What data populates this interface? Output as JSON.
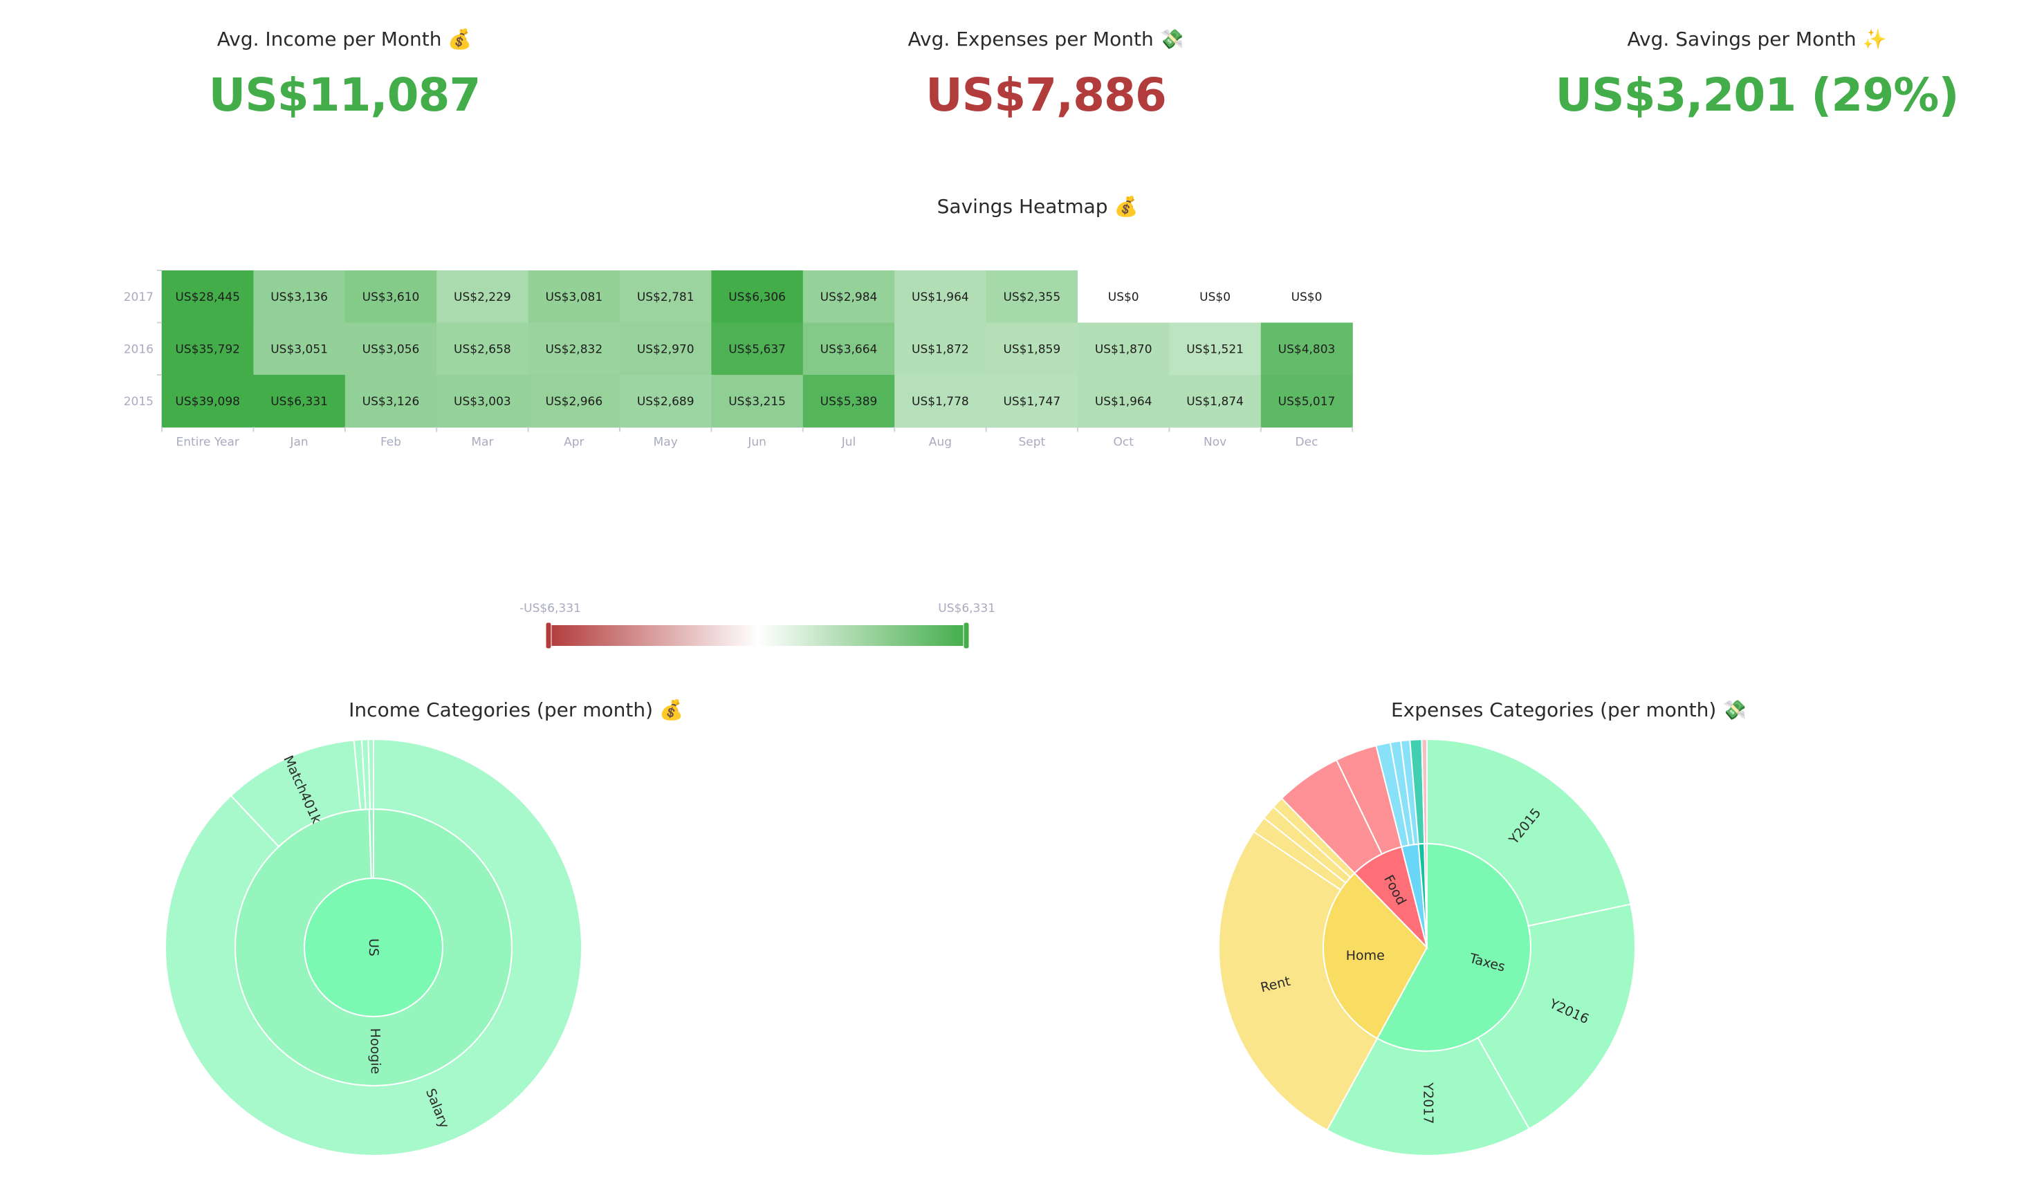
{
  "stats": {
    "income": {
      "title": "Avg. Income per Month 💰",
      "value": "US$11,087",
      "color": "#43ad4a"
    },
    "expenses": {
      "title": "Avg. Expenses per Month 💸",
      "value": "US$7,886",
      "color": "#b23b3b"
    },
    "savings": {
      "title": "Avg. Savings per Month ✨",
      "value": "US$3,201 (29%)",
      "color": "#43ad4a"
    }
  },
  "heatmap": {
    "title": "Savings Heatmap 💰",
    "columns": [
      "Entire Year",
      "Jan",
      "Feb",
      "Mar",
      "Apr",
      "May",
      "Jun",
      "Jul",
      "Aug",
      "Sept",
      "Oct",
      "Nov",
      "Dec"
    ],
    "rows": [
      {
        "year": "2017",
        "values": [
          28445,
          3136,
          3610,
          2229,
          3081,
          2781,
          6306,
          2984,
          1964,
          2355,
          0,
          0,
          0
        ],
        "labels": [
          "US$28,445",
          "US$3,136",
          "US$3,610",
          "US$2,229",
          "US$3,081",
          "US$2,781",
          "US$6,306",
          "US$2,984",
          "US$1,964",
          "US$2,355",
          "US$0",
          "US$0",
          "US$0"
        ]
      },
      {
        "year": "2016",
        "values": [
          35792,
          3051,
          3056,
          2658,
          2832,
          2970,
          5637,
          3664,
          1872,
          1859,
          1870,
          1521,
          4803
        ],
        "labels": [
          "US$35,792",
          "US$3,051",
          "US$3,056",
          "US$2,658",
          "US$2,832",
          "US$2,970",
          "US$5,637",
          "US$3,664",
          "US$1,872",
          "US$1,859",
          "US$1,870",
          "US$1,521",
          "US$4,803"
        ]
      },
      {
        "year": "2015",
        "values": [
          39098,
          6331,
          3126,
          3003,
          2966,
          2689,
          3215,
          5389,
          1778,
          1747,
          1964,
          1874,
          5017
        ],
        "labels": [
          "US$39,098",
          "US$6,331",
          "US$3,126",
          "US$3,003",
          "US$2,966",
          "US$2,689",
          "US$3,215",
          "US$5,389",
          "US$1,778",
          "US$1,747",
          "US$1,964",
          "US$1,874",
          "US$5,017"
        ]
      }
    ],
    "scale": {
      "min_label": "-US$6,331",
      "max_label": "US$6,331",
      "min": -6331,
      "max": 6331,
      "low_color": "#b23b3b",
      "mid_color": "#ffffff",
      "high_color": "#43ad4a"
    }
  },
  "income_sunburst": {
    "title": "Income Categories (per month) 💰",
    "root": {
      "label": "US",
      "value": 100,
      "color": "#7bf8b2"
    },
    "ring1": [
      {
        "label": "Hoogie",
        "value": 99.5,
        "color": "#95f5bd"
      },
      {
        "label": "",
        "value": 0.5,
        "color": "#95f5bd"
      }
    ],
    "ring2": [
      {
        "label": "Salary",
        "value": 88,
        "color": "#a7f9cb"
      },
      {
        "label": "Match401k",
        "value": 10.5,
        "color": "#a7f9cb"
      },
      {
        "label": "",
        "value": 0.6,
        "color": "#a7f9cb"
      },
      {
        "label": "",
        "value": 0.5,
        "color": "#a7f9cb"
      },
      {
        "label": "",
        "value": 0.4,
        "color": "#a7f9cb"
      }
    ]
  },
  "expenses_sunburst": {
    "title": "Expenses Categories (per month) 💸",
    "inner": [
      {
        "label": "Taxes",
        "value": 57.5,
        "color": "#7bf8b2"
      },
      {
        "label": "Home",
        "value": 29.5,
        "color": "#f9dc62"
      },
      {
        "label": "Food",
        "value": 8.3,
        "color": "#fe6f77"
      },
      {
        "label": "",
        "value": 2.6,
        "color": "#6ad6f7"
      },
      {
        "label": "",
        "value": 0.9,
        "color": "#12c19e"
      },
      {
        "label": "",
        "value": 0.4,
        "color": "#f0c2c2"
      }
    ],
    "outer": [
      {
        "label": "Y2015",
        "value": 21.5,
        "color": "#9ffac5",
        "parent": 0
      },
      {
        "label": "Y2016",
        "value": 20,
        "color": "#9ffac5",
        "parent": 0
      },
      {
        "label": "Y2017",
        "value": 16,
        "color": "#9ffac5",
        "parent": 0
      },
      {
        "label": "Rent",
        "value": 26.2,
        "color": "#fae58a",
        "parent": 1
      },
      {
        "label": "",
        "value": 1.3,
        "color": "#fae58a",
        "parent": 1
      },
      {
        "label": "",
        "value": 1.1,
        "color": "#fae58a",
        "parent": 1
      },
      {
        "label": "",
        "value": 0.9,
        "color": "#fae58a",
        "parent": 1
      },
      {
        "label": "",
        "value": 5.1,
        "color": "#fe9196",
        "parent": 2
      },
      {
        "label": "",
        "value": 3.2,
        "color": "#fe9196",
        "parent": 2
      },
      {
        "label": "",
        "value": 1.1,
        "color": "#89e1f9",
        "parent": 3
      },
      {
        "label": "",
        "value": 0.8,
        "color": "#89e1f9",
        "parent": 3
      },
      {
        "label": "",
        "value": 0.7,
        "color": "#89e1f9",
        "parent": 3
      },
      {
        "label": "",
        "value": 0.9,
        "color": "#41cfb1",
        "parent": 4
      },
      {
        "label": "",
        "value": 0.4,
        "color": "#f0c2c2",
        "parent": 5
      }
    ]
  }
}
